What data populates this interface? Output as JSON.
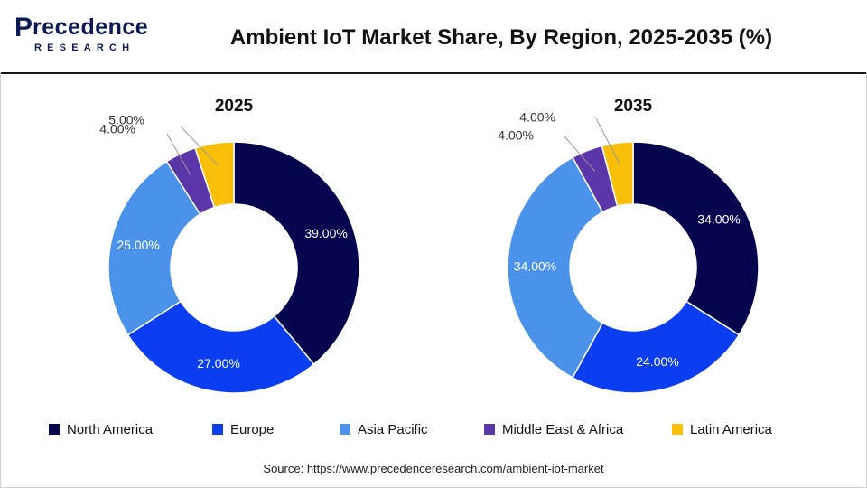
{
  "brand": {
    "logo_main": "recedence",
    "logo_p": "P",
    "logo_sub": "RESEARCH"
  },
  "title": "Ambient IoT Market Share, By Region, 2025-2035 (%)",
  "source": "Source: https://www.precedenceresearch.com/ambient-iot-market",
  "colors": {
    "North America": "#06064f",
    "Europe": "#0a3ef0",
    "Asia Pacific": "#4a92ea",
    "Middle East & Africa": "#5b36a8",
    "Latin America": "#f9bf0a"
  },
  "legend": [
    "North America",
    "Europe",
    "Asia Pacific",
    "Middle East & Africa",
    "Latin America"
  ],
  "chart_data": [
    {
      "type": "pie",
      "variant": "donut",
      "title": "2025",
      "categories": [
        "North America",
        "Europe",
        "Asia Pacific",
        "Middle East & Africa",
        "Latin America"
      ],
      "values": [
        39.0,
        27.0,
        25.0,
        4.0,
        5.0
      ],
      "labels": [
        "39.00%",
        "27.00%",
        "25.00%",
        "4.00%",
        "5.00%"
      ],
      "legend": "bottom"
    },
    {
      "type": "pie",
      "variant": "donut",
      "title": "2035",
      "categories": [
        "North America",
        "Europe",
        "Asia Pacific",
        "Middle East & Africa",
        "Latin America"
      ],
      "values": [
        34.0,
        24.0,
        34.0,
        4.0,
        4.0
      ],
      "labels": [
        "34.00%",
        "24.00%",
        "34.00%",
        "4.00%",
        "4.00%"
      ],
      "legend": "bottom"
    }
  ]
}
